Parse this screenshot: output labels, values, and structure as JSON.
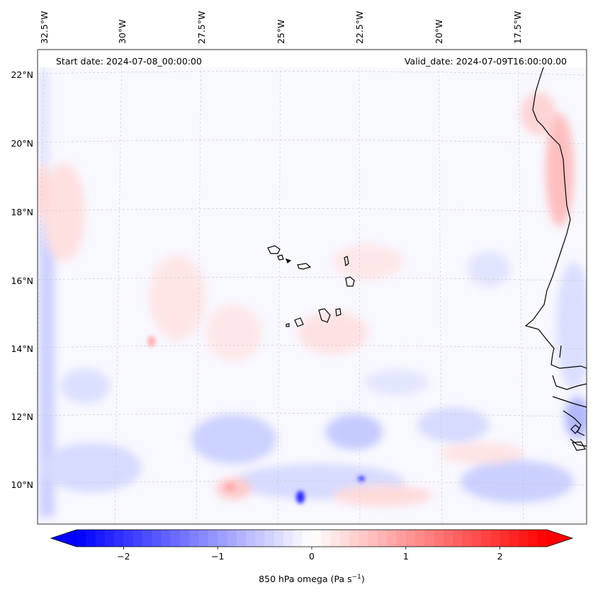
{
  "map": {
    "start_date": "Start date: 2024-07-08_00:00:00",
    "valid_date": "Valid_date: 2024-07-09T16:00:00.00",
    "lon_labels": [
      "32.5°W",
      "30°W",
      "27.5°W",
      "25°W",
      "22.5°W",
      "20°W",
      "17.5°W"
    ],
    "lat_labels": [
      "22°N",
      "20°N",
      "18°N",
      "16°N",
      "14°N",
      "12°N",
      "10°N"
    ],
    "variable": "850 hPa omega",
    "units": "Pa s",
    "units_exponent": "−1"
  },
  "colorbar": {
    "ticks": [
      "−2",
      "−1",
      "0",
      "1",
      "2"
    ],
    "tick_values": [
      -2,
      -1,
      0,
      1,
      2
    ],
    "range": [
      -2.5,
      2.5
    ],
    "colormap": "bwr",
    "low_color": "#0000ff",
    "mid_color": "#ffffff",
    "high_color": "#ff0000"
  }
}
